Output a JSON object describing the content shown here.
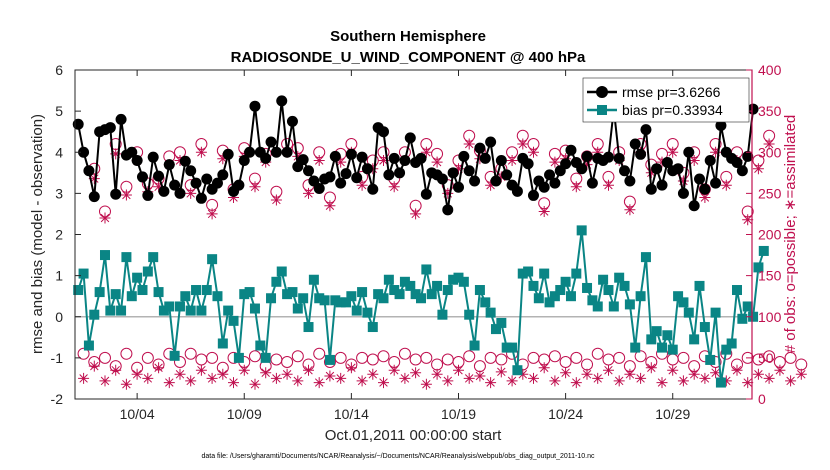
{
  "chart_data": {
    "type": "line",
    "title": "Southern Hemisphere",
    "subtitle": "RADIOSONDE_U_WIND_COMPONENT @ 400 hPa",
    "xlabel": "Oct.01,2011 00:00:00 start",
    "ylabel": "rmse and bias (model - observation)",
    "ylabel_right": "# of obs: o=possible; ∗=assimilated",
    "footer": "data file: /Users/gharamti/Documents/NCAR/Reanalysis/~/Documents/NCAR/Reanalysis/webpub/obs_diag_output_2011-10.nc",
    "xlim": [
      0.6,
      32.2
    ],
    "ylim": [
      -2,
      6
    ],
    "ylim_right": [
      0,
      400
    ],
    "xticks": [
      3.5,
      8.5,
      13.5,
      18.5,
      23.5,
      28.5
    ],
    "xtick_labels": [
      "10/04",
      "10/09",
      "10/14",
      "10/19",
      "10/24",
      "10/29"
    ],
    "yticks": [
      -2,
      -1,
      0,
      1,
      2,
      3,
      4,
      5,
      6
    ],
    "yticks_right": [
      0,
      50,
      100,
      150,
      200,
      250,
      300,
      350,
      400
    ],
    "legend": {
      "location": "top-right",
      "entries": [
        "rmse pr=3.6266",
        "bias pr=0.33934"
      ]
    },
    "colors": {
      "rmse": "#000000",
      "bias": "#0a8585",
      "obs": "#c0104f",
      "zero": "#b3b3b3",
      "axis": "#262626"
    },
    "time_step_days": 0.25,
    "x_start": 0.75,
    "series": [
      {
        "name": "rmse pr=3.6266",
        "marker": "circle",
        "values": [
          4.68,
          4.0,
          3.55,
          2.92,
          4.5,
          4.55,
          4.6,
          2.98,
          4.8,
          3.93,
          4.0,
          3.8,
          3.4,
          2.95,
          3.88,
          3.42,
          3.05,
          3.7,
          3.2,
          3.0,
          3.78,
          3.55,
          3.25,
          2.88,
          3.35,
          3.1,
          3.25,
          3.45,
          3.95,
          3.05,
          3.2,
          3.8,
          4.0,
          5.12,
          4.0,
          3.85,
          4.25,
          4.0,
          5.25,
          4.0,
          4.75,
          3.65,
          3.82,
          3.55,
          3.3,
          3.12,
          3.35,
          3.4,
          3.9,
          3.25,
          3.48,
          3.95,
          3.38,
          3.88,
          3.6,
          3.1,
          4.6,
          4.5,
          3.45,
          3.85,
          3.5,
          3.8,
          4.35,
          3.75,
          3.85,
          2.98,
          3.5,
          3.45,
          3.35,
          2.6,
          3.5,
          3.15,
          3.9,
          3.55,
          3.3,
          4.1,
          3.85,
          4.25,
          3.3,
          3.8,
          3.45,
          3.2,
          3.05,
          3.85,
          3.72,
          2.95,
          3.3,
          3.15,
          3.45,
          3.25,
          3.55,
          3.72,
          4.05,
          3.75,
          3.6,
          3.9,
          3.25,
          3.85,
          3.8,
          3.88,
          5.05,
          3.85,
          3.55,
          3.3,
          4.2,
          3.95,
          4.55,
          3.1,
          3.6,
          3.2,
          3.75,
          3.55,
          3.6,
          3.0,
          4.0,
          2.7,
          3.35,
          3.1,
          3.8,
          3.25,
          4.65,
          4.0,
          3.85,
          3.75,
          3.55,
          3.9,
          5.05
        ]
      },
      {
        "name": "bias pr=0.33934",
        "marker": "square",
        "values": [
          0.65,
          1.05,
          -0.7,
          0.05,
          0.6,
          1.5,
          0.15,
          0.55,
          0.15,
          1.45,
          0.5,
          0.95,
          0.65,
          1.1,
          1.45,
          0.6,
          0.15,
          0.25,
          -0.95,
          0.25,
          0.5,
          0.15,
          0.65,
          0.15,
          0.65,
          1.4,
          0.5,
          -0.65,
          0.15,
          -0.1,
          -1.0,
          0.55,
          0.6,
          0.2,
          -0.7,
          -1.0,
          0.45,
          0.85,
          1.1,
          0.55,
          0.6,
          0.2,
          0.45,
          -0.25,
          0.9,
          0.45,
          0.4,
          -1.05,
          0.4,
          0.35,
          0.35,
          0.5,
          0.15,
          0.6,
          0.1,
          -0.25,
          0.55,
          0.45,
          0.9,
          0.65,
          0.55,
          0.85,
          0.75,
          0.55,
          0.45,
          1.15,
          0.55,
          0.75,
          0.05,
          0.65,
          0.9,
          0.95,
          0.85,
          0.05,
          -0.7,
          0.65,
          0.35,
          0.1,
          -0.3,
          -0.15,
          -0.75,
          -0.75,
          -1.3,
          1.05,
          1.1,
          0.75,
          0.45,
          1.05,
          0.35,
          0.5,
          0.65,
          0.85,
          0.5,
          1.05,
          2.1,
          0.7,
          0.4,
          0.25,
          0.9,
          0.65,
          0.25,
          0.95,
          0.75,
          0.3,
          -0.75,
          0.5,
          1.45,
          -0.55,
          -0.35,
          -0.75,
          -0.45,
          -0.8,
          0.5,
          0.35,
          0.1,
          -0.55,
          0.75,
          -0.25,
          -1.05,
          0.1,
          -1.6,
          -0.8,
          -0.65,
          0.65,
          -0.05,
          0.25,
          0.0,
          1.2,
          1.6
        ]
      },
      {
        "name": "obs possible",
        "marker": "open-circle",
        "axis": "right",
        "am_values": [
          55,
          45,
          50,
          40,
          55,
          38,
          50,
          42,
          55,
          45,
          55,
          48,
          50,
          38,
          50,
          45,
          52,
          40,
          48,
          45,
          52,
          42,
          55,
          45,
          50,
          42,
          50,
          48,
          52,
          45,
          55,
          48,
          50,
          42,
          48,
          45,
          52,
          40,
          50,
          48,
          55,
          42,
          50,
          48,
          52,
          45,
          50,
          42,
          55,
          48,
          50,
          40,
          52,
          45,
          55,
          48,
          50,
          40,
          52,
          45,
          55,
          42,
          50,
          48,
          52,
          45,
          50,
          42
        ],
        "pm_values": [
          280,
          228,
          310,
          258,
          300,
          262,
          268,
          295,
          300,
          260,
          310,
          236,
          302,
          255,
          305,
          268,
          298,
          252,
          310,
          305,
          260,
          300,
          245,
          298,
          310,
          270,
          290,
          300,
          268,
          300,
          235,
          310,
          298,
          260,
          290,
          320,
          302,
          270,
          280,
          300,
          320,
          310,
          238,
          298,
          302,
          268,
          295,
          310,
          270,
          300,
          240,
          310,
          285,
          298,
          310,
          275,
          300,
          255,
          310,
          270,
          300,
          228,
          290,
          320
        ]
      },
      {
        "name": "obs assimilated",
        "marker": "asterisk",
        "axis": "right",
        "am_values": [
          25,
          40,
          22,
          35,
          18,
          30,
          25,
          38,
          20,
          30,
          22,
          35,
          25,
          30,
          20,
          35,
          18,
          32,
          25,
          30,
          22,
          35,
          20,
          28,
          25,
          38,
          22,
          30,
          20,
          35,
          25,
          32,
          18,
          30,
          22,
          35,
          25,
          28,
          20,
          33,
          22,
          30,
          25,
          38,
          22,
          32,
          20,
          30,
          25,
          35,
          22,
          30,
          25,
          38,
          20,
          35,
          22,
          30,
          25,
          32,
          22,
          35,
          20,
          30,
          25,
          35,
          22,
          30
        ],
        "pm_values": [
          268,
          220,
          298,
          248,
          290,
          252,
          258,
          285,
          290,
          250,
          300,
          225,
          292,
          245,
          295,
          258,
          288,
          242,
          300,
          295,
          250,
          290,
          235,
          288,
          300,
          260,
          280,
          290,
          258,
          290,
          225,
          300,
          288,
          250,
          280,
          310,
          292,
          260,
          270,
          290,
          310,
          300,
          228,
          288,
          292,
          258,
          285,
          300,
          260,
          290,
          230,
          300,
          275,
          288,
          300,
          265,
          290,
          245,
          300,
          260,
          290,
          218,
          280,
          310
        ]
      }
    ]
  }
}
